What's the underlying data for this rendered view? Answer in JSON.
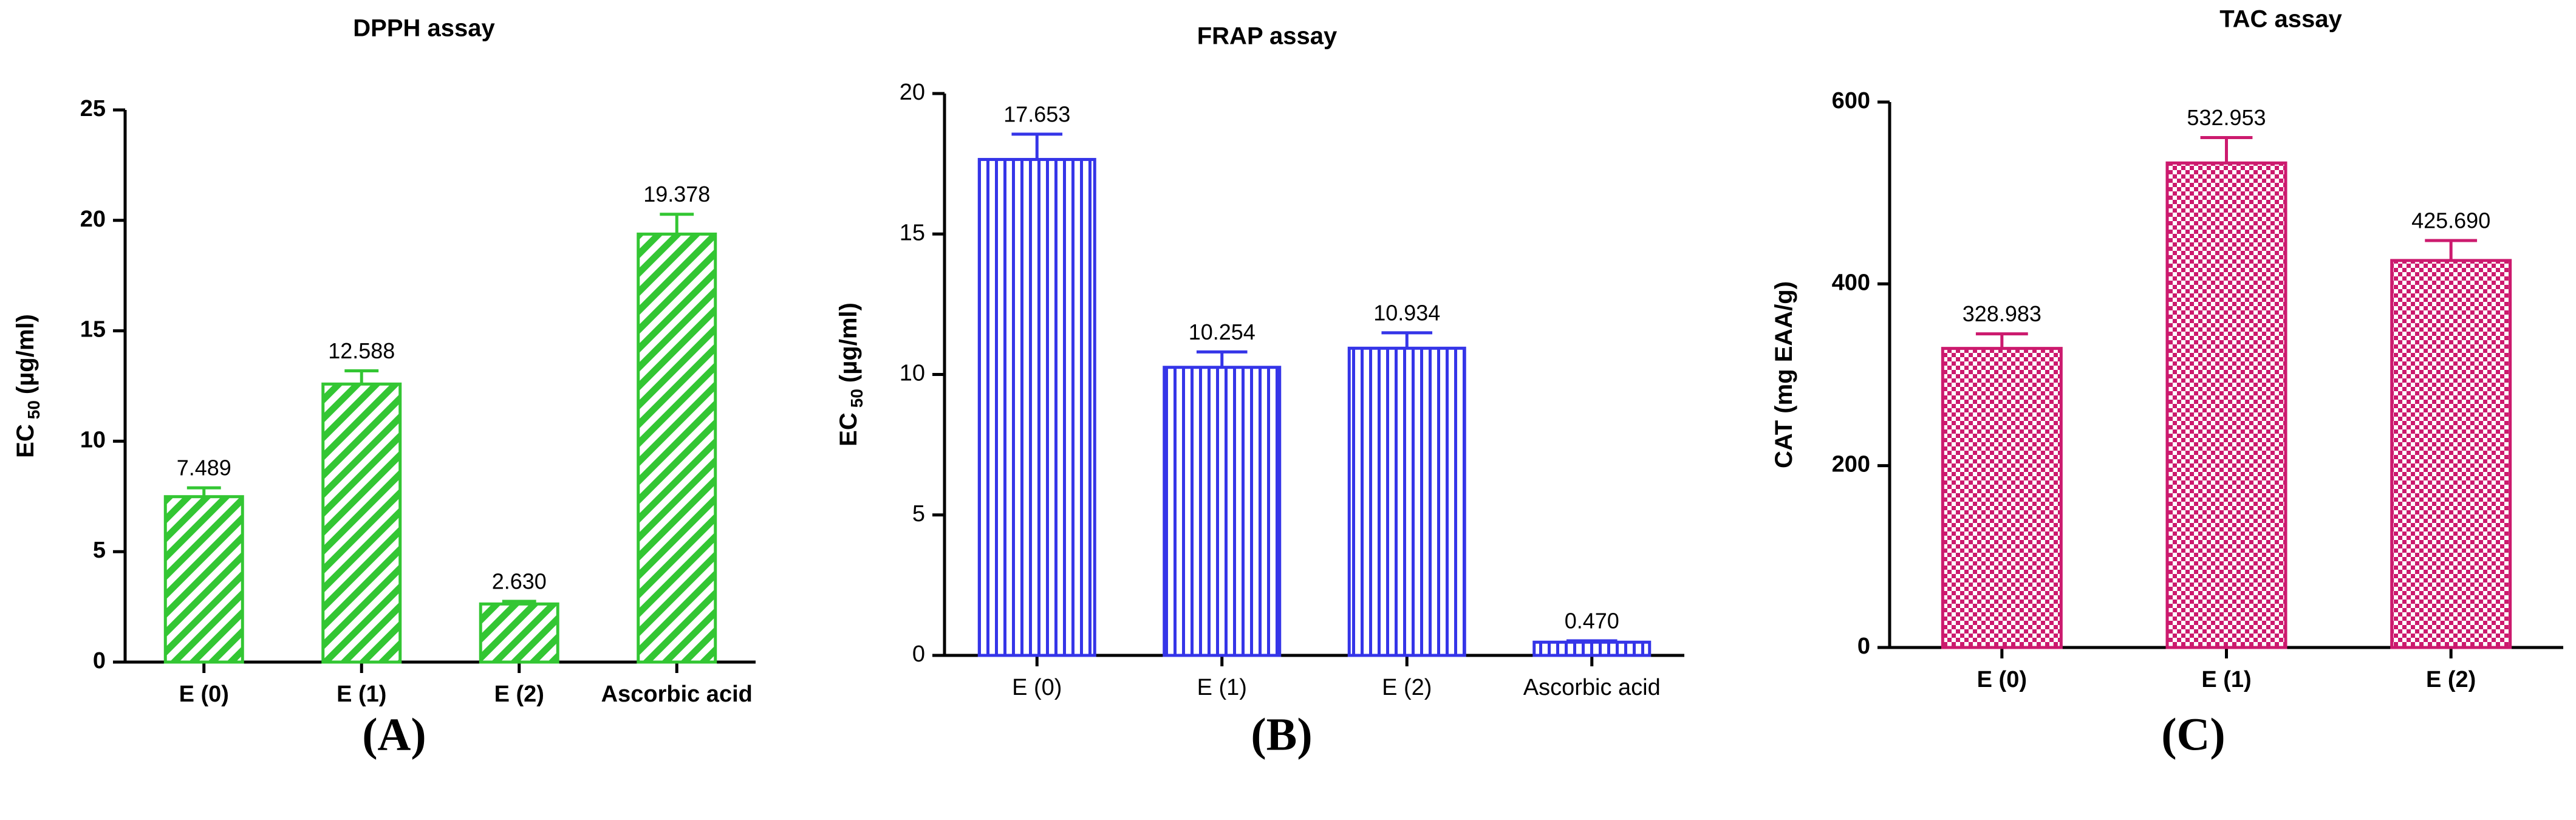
{
  "chart_data": [
    {
      "type": "bar",
      "title": "DPPH assay",
      "panel_label": "(A)",
      "ylabel": [
        "EC",
        "50",
        "(µg/ml)"
      ],
      "categories": [
        "E (0)",
        "E (1)",
        "E (2)",
        "Ascorbic acid"
      ],
      "values": [
        7.489,
        12.588,
        2.63,
        19.378
      ],
      "value_labels": [
        "7.489",
        "12.588",
        "2.630",
        "19.378"
      ],
      "errors": [
        0.4,
        0.6,
        0.12,
        0.9
      ],
      "color": "#33c633",
      "pattern": "diagonal",
      "ylim": [
        0,
        25
      ],
      "yticks": [
        0,
        5,
        10,
        15,
        20,
        25
      ]
    },
    {
      "type": "bar",
      "title": "FRAP assay",
      "panel_label": "(B)",
      "ylabel": [
        "EC",
        "50",
        "(µg/ml)"
      ],
      "categories": [
        "E (0)",
        "E (1)",
        "E (2)",
        "Ascorbic acid"
      ],
      "values": [
        17.653,
        10.254,
        10.934,
        0.47
      ],
      "value_labels": [
        "17.653",
        "10.254",
        "10.934",
        "0.470"
      ],
      "errors": [
        0.9,
        0.55,
        0.55,
        0.05
      ],
      "color": "#3535e8",
      "pattern": "vertical",
      "ylim": [
        0,
        20
      ],
      "yticks": [
        0,
        5,
        10,
        15,
        20
      ]
    },
    {
      "type": "bar",
      "title": "TAC assay",
      "panel_label": "(C)",
      "ylabel": [
        "CAT (mg EAA/g)"
      ],
      "categories": [
        "E (0)",
        "E (1)",
        "E (2)"
      ],
      "values": [
        328.983,
        532.953,
        425.69
      ],
      "value_labels": [
        "328.983",
        "532.953",
        "425.690"
      ],
      "errors": [
        16,
        28,
        22
      ],
      "color": "#cc1a6e",
      "pattern": "checker",
      "ylim": [
        0,
        600
      ],
      "yticks": [
        0,
        200,
        400,
        600
      ]
    }
  ]
}
